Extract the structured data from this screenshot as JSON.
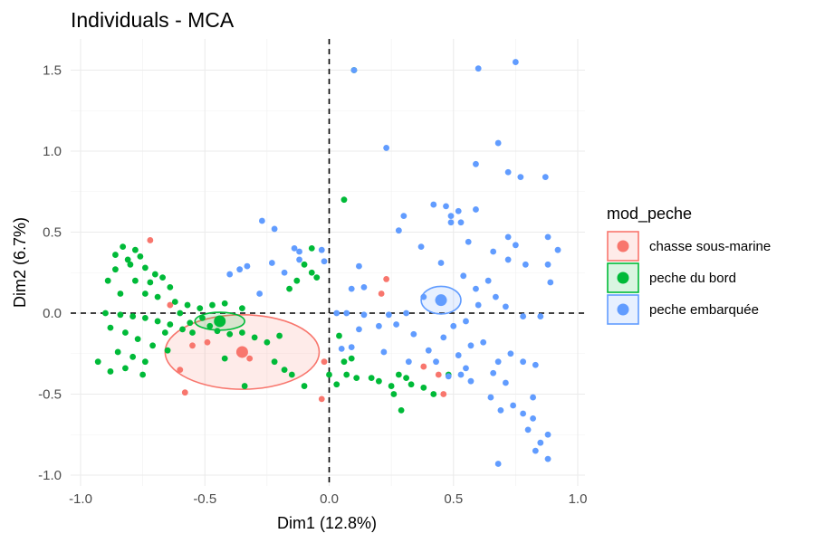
{
  "chart_data": {
    "type": "scatter",
    "title": "Individuals - MCA",
    "xlabel": "Dim1 (12.8%)",
    "ylabel": "Dim2 (6.7%)",
    "xlim": [
      -1.0,
      1.0
    ],
    "ylim": [
      -1.0,
      1.55
    ],
    "x_ticks": [
      -1.0,
      -0.5,
      0.0,
      0.5,
      1.0
    ],
    "x_tick_labels": [
      "-1.0",
      "-0.5",
      "0.0",
      "0.5",
      "1.0"
    ],
    "y_ticks": [
      -1.0,
      -0.5,
      0.0,
      0.5,
      1.0,
      1.5
    ],
    "y_tick_labels": [
      "-1.0",
      "-0.5",
      "0.0",
      "0.5",
      "1.0",
      "1.5"
    ],
    "grid": true,
    "reference_lines": [
      {
        "axis": "x",
        "value": 0,
        "style": "dashed"
      },
      {
        "axis": "y",
        "value": 0,
        "style": "dashed"
      }
    ],
    "legend": {
      "title": "mod_peche",
      "position": "right"
    },
    "series": [
      {
        "name": "chasse sous-marine",
        "color": "#F8766D",
        "points": [
          [
            -0.72,
            0.45
          ],
          [
            -0.64,
            0.05
          ],
          [
            -0.55,
            -0.2
          ],
          [
            -0.6,
            -0.35
          ],
          [
            -0.58,
            -0.49
          ],
          [
            -0.32,
            -0.28
          ],
          [
            0.23,
            0.21
          ],
          [
            -0.03,
            -0.53
          ],
          [
            0.38,
            -0.33
          ],
          [
            0.44,
            -0.38
          ],
          [
            0.46,
            -0.5
          ],
          [
            -0.02,
            -0.3
          ],
          [
            0.21,
            0.12
          ],
          [
            -0.49,
            -0.18
          ]
        ],
        "centroid": [
          -0.35,
          -0.24
        ],
        "ellipse": {
          "center": [
            -0.35,
            -0.24
          ],
          "radii": [
            0.31,
            0.23
          ]
        }
      },
      {
        "name": "peche du bord",
        "color": "#00BA38",
        "points": [
          [
            -0.83,
            0.41
          ],
          [
            -0.78,
            0.39
          ],
          [
            -0.81,
            0.33
          ],
          [
            -0.76,
            0.35
          ],
          [
            -0.86,
            0.27
          ],
          [
            -0.74,
            0.28
          ],
          [
            -0.7,
            0.24
          ],
          [
            -0.89,
            0.2
          ],
          [
            -0.78,
            0.2
          ],
          [
            -0.72,
            0.19
          ],
          [
            -0.67,
            0.22
          ],
          [
            -0.64,
            0.16
          ],
          [
            -0.84,
            0.12
          ],
          [
            -0.74,
            0.12
          ],
          [
            -0.69,
            0.1
          ],
          [
            -0.62,
            0.07
          ],
          [
            -0.57,
            0.05
          ],
          [
            -0.52,
            0.03
          ],
          [
            -0.47,
            0.05
          ],
          [
            -0.42,
            0.06
          ],
          [
            -0.9,
            0.0
          ],
          [
            -0.84,
            -0.01
          ],
          [
            -0.79,
            -0.02
          ],
          [
            -0.74,
            -0.03
          ],
          [
            -0.69,
            -0.05
          ],
          [
            -0.64,
            -0.07
          ],
          [
            -0.59,
            -0.1
          ],
          [
            -0.55,
            -0.12
          ],
          [
            -0.88,
            -0.09
          ],
          [
            -0.82,
            -0.12
          ],
          [
            -0.77,
            -0.16
          ],
          [
            -0.71,
            -0.2
          ],
          [
            -0.65,
            -0.23
          ],
          [
            -0.85,
            -0.24
          ],
          [
            -0.79,
            -0.27
          ],
          [
            -0.74,
            -0.3
          ],
          [
            -0.93,
            -0.3
          ],
          [
            -0.88,
            -0.36
          ],
          [
            -0.82,
            -0.34
          ],
          [
            -0.75,
            -0.38
          ],
          [
            -0.51,
            -0.03
          ],
          [
            -0.48,
            -0.08
          ],
          [
            -0.45,
            -0.11
          ],
          [
            -0.4,
            -0.13
          ],
          [
            -0.35,
            -0.12
          ],
          [
            -0.3,
            -0.15
          ],
          [
            -0.25,
            -0.18
          ],
          [
            -0.2,
            -0.14
          ],
          [
            -0.22,
            -0.3
          ],
          [
            -0.18,
            -0.35
          ],
          [
            -0.15,
            -0.38
          ],
          [
            -0.42,
            -0.28
          ],
          [
            -0.34,
            -0.45
          ],
          [
            -0.1,
            -0.45
          ],
          [
            0.03,
            -0.44
          ],
          [
            0.06,
            -0.3
          ],
          [
            0.09,
            -0.28
          ],
          [
            0.04,
            -0.14
          ],
          [
            0.1,
            1.5
          ],
          [
            0.06,
            0.7
          ],
          [
            0.0,
            -0.38
          ],
          [
            0.07,
            -0.38
          ],
          [
            0.11,
            -0.4
          ],
          [
            0.17,
            -0.4
          ],
          [
            0.2,
            -0.42
          ],
          [
            0.25,
            -0.45
          ],
          [
            0.28,
            -0.38
          ],
          [
            0.31,
            -0.4
          ],
          [
            0.26,
            -0.5
          ],
          [
            0.29,
            -0.6
          ],
          [
            0.33,
            -0.44
          ],
          [
            0.38,
            -0.46
          ],
          [
            0.42,
            -0.5
          ],
          [
            0.48,
            -0.38
          ],
          [
            -0.86,
            0.36
          ],
          [
            -0.8,
            0.3
          ],
          [
            -0.6,
            0.0
          ],
          [
            -0.56,
            -0.06
          ],
          [
            -0.35,
            0.03
          ],
          [
            -0.66,
            -0.12
          ],
          [
            -0.16,
            0.15
          ],
          [
            -0.13,
            0.2
          ],
          [
            -0.1,
            0.3
          ],
          [
            -0.07,
            0.25
          ],
          [
            -0.05,
            0.22
          ],
          [
            -0.07,
            0.4
          ]
        ],
        "centroid": [
          -0.44,
          -0.05
        ],
        "ellipse": {
          "center": [
            -0.44,
            -0.05
          ],
          "radii": [
            0.1,
            0.055
          ]
        }
      },
      {
        "name": "peche embarquée",
        "color": "#619CFF",
        "points": [
          [
            0.1,
            1.5
          ],
          [
            0.6,
            1.51
          ],
          [
            0.75,
            1.55
          ],
          [
            0.23,
            1.02
          ],
          [
            0.68,
            1.05
          ],
          [
            0.59,
            0.92
          ],
          [
            0.72,
            0.87
          ],
          [
            0.77,
            0.84
          ],
          [
            0.87,
            0.84
          ],
          [
            0.42,
            0.67
          ],
          [
            0.47,
            0.66
          ],
          [
            0.59,
            0.64
          ],
          [
            0.49,
            0.6
          ],
          [
            0.52,
            0.63
          ],
          [
            0.53,
            0.56
          ],
          [
            0.3,
            0.6
          ],
          [
            0.28,
            0.51
          ],
          [
            0.49,
            0.56
          ],
          [
            0.37,
            0.41
          ],
          [
            0.56,
            0.44
          ],
          [
            0.66,
            0.38
          ],
          [
            0.72,
            0.47
          ],
          [
            0.88,
            0.47
          ],
          [
            0.92,
            0.39
          ],
          [
            0.75,
            0.42
          ],
          [
            0.88,
            0.3
          ],
          [
            0.89,
            0.19
          ],
          [
            0.45,
            0.31
          ],
          [
            0.72,
            0.33
          ],
          [
            0.79,
            0.3
          ],
          [
            0.64,
            0.2
          ],
          [
            0.67,
            0.1
          ],
          [
            0.54,
            0.23
          ],
          [
            0.59,
            0.15
          ],
          [
            0.6,
            0.05
          ],
          [
            0.71,
            0.04
          ],
          [
            0.78,
            -0.02
          ],
          [
            0.85,
            -0.02
          ],
          [
            0.55,
            -0.05
          ],
          [
            0.5,
            -0.08
          ],
          [
            0.46,
            -0.15
          ],
          [
            0.4,
            -0.23
          ],
          [
            0.32,
            -0.3
          ],
          [
            0.34,
            -0.13
          ],
          [
            0.43,
            -0.3
          ],
          [
            0.52,
            -0.26
          ],
          [
            0.57,
            -0.2
          ],
          [
            0.62,
            -0.18
          ],
          [
            0.68,
            -0.3
          ],
          [
            0.73,
            -0.25
          ],
          [
            0.78,
            -0.3
          ],
          [
            0.83,
            -0.32
          ],
          [
            0.55,
            -0.34
          ],
          [
            0.66,
            -0.37
          ],
          [
            0.71,
            -0.43
          ],
          [
            0.65,
            -0.52
          ],
          [
            0.69,
            -0.6
          ],
          [
            0.74,
            -0.57
          ],
          [
            0.78,
            -0.62
          ],
          [
            0.82,
            -0.65
          ],
          [
            0.8,
            -0.72
          ],
          [
            0.85,
            -0.8
          ],
          [
            0.83,
            -0.85
          ],
          [
            0.88,
            -0.9
          ],
          [
            0.68,
            -0.93
          ],
          [
            0.88,
            -0.75
          ],
          [
            0.82,
            -0.52
          ],
          [
            0.57,
            -0.42
          ],
          [
            0.53,
            -0.38
          ],
          [
            0.48,
            -0.39
          ],
          [
            0.38,
            0.1
          ],
          [
            0.31,
            0.0
          ],
          [
            0.12,
            0.29
          ],
          [
            0.09,
            0.15
          ],
          [
            0.14,
            0.16
          ],
          [
            0.07,
            0.0
          ],
          [
            0.03,
            0.0
          ],
          [
            0.12,
            -0.1
          ],
          [
            0.2,
            -0.08
          ],
          [
            0.27,
            -0.07
          ],
          [
            0.22,
            -0.24
          ],
          [
            -0.02,
            0.32
          ],
          [
            -0.12,
            0.33
          ],
          [
            -0.23,
            0.31
          ],
          [
            -0.27,
            0.57
          ],
          [
            -0.22,
            0.52
          ],
          [
            -0.14,
            0.4
          ],
          [
            -0.12,
            0.38
          ],
          [
            -0.03,
            0.39
          ],
          [
            -0.33,
            0.29
          ],
          [
            -0.36,
            0.27
          ],
          [
            -0.4,
            0.24
          ],
          [
            -0.28,
            0.12
          ],
          [
            -0.18,
            0.25
          ],
          [
            0.05,
            -0.22
          ],
          [
            0.09,
            -0.21
          ],
          [
            0.24,
            -0.01
          ],
          [
            0.14,
            -0.01
          ]
        ],
        "centroid": [
          0.45,
          0.08
        ],
        "ellipse": {
          "center": [
            0.45,
            0.08
          ],
          "radii": [
            0.08,
            0.085
          ]
        }
      }
    ]
  }
}
